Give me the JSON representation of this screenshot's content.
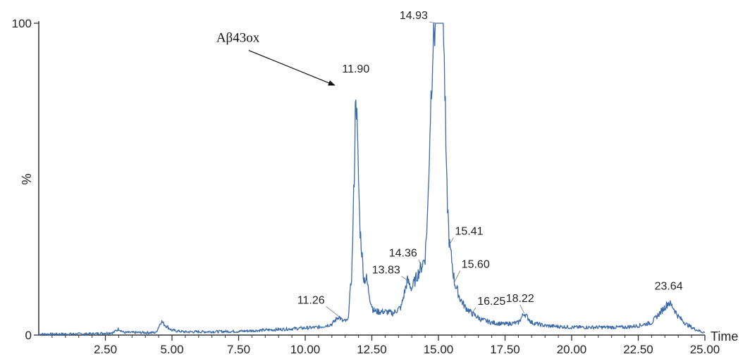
{
  "chart_data": {
    "type": "line",
    "title": "",
    "xlabel": "Time",
    "ylabel": "%",
    "xlim": [
      0,
      25
    ],
    "ylim": [
      0,
      100
    ],
    "grid": false,
    "legend": "none",
    "line_color": "#3a6aa8",
    "axis_color": "#333333",
    "x_ticks": [
      2.5,
      5,
      7.5,
      10,
      12.5,
      15,
      17.5,
      20,
      22.5,
      25
    ],
    "x_tick_labels": [
      "2.50",
      "5.00",
      "7.50",
      "10.00",
      "12.50",
      "15.00",
      "17.50",
      "20.00",
      "22.50",
      "25.00"
    ],
    "y_ticks": [
      0,
      100
    ],
    "y_tick_labels": [
      "0",
      "100"
    ],
    "series": [
      {
        "x": [
          0,
          2.0,
          2.8,
          3.0,
          3.2,
          4.4,
          4.6,
          4.7,
          5.0,
          5.5,
          7.5,
          9.0,
          10.5,
          11.0,
          11.26,
          11.4,
          11.6,
          11.75,
          11.85,
          11.9,
          11.95,
          12.05,
          12.2,
          12.3,
          12.45,
          12.55,
          12.7,
          13.0,
          13.3,
          13.6,
          13.83,
          14.0,
          14.2,
          14.36,
          14.5,
          14.6,
          14.7,
          14.8,
          14.88,
          14.93,
          15.0,
          15.1,
          15.18,
          15.25,
          15.3,
          15.41,
          15.5,
          15.6,
          15.8,
          16.0,
          16.25,
          16.6,
          17.0,
          17.5,
          18.0,
          18.22,
          18.5,
          19.0,
          20.0,
          21.0,
          22.0,
          22.5,
          23.0,
          23.3,
          23.5,
          23.64,
          23.8,
          24.0,
          24.3,
          24.6,
          24.9,
          25.0
        ],
        "y": [
          0.3,
          0.4,
          0.8,
          2.0,
          0.8,
          0.8,
          4.5,
          3.5,
          1.5,
          1.0,
          1.2,
          1.8,
          2.5,
          3.5,
          6.0,
          4.5,
          4.5,
          20.0,
          55.0,
          81.0,
          65.0,
          35.0,
          18.0,
          18.0,
          11.0,
          8.0,
          7.5,
          7.5,
          7.0,
          9.0,
          17.5,
          15.0,
          19.0,
          22.0,
          25.0,
          40.0,
          72.0,
          95.0,
          100.0,
          100.0,
          100.0,
          100.0,
          100.0,
          75.0,
          50.0,
          29.0,
          24.0,
          17.0,
          12.0,
          9.0,
          7.0,
          5.0,
          4.0,
          3.5,
          4.0,
          7.0,
          4.0,
          3.0,
          2.5,
          2.5,
          2.5,
          3.0,
          4.0,
          7.0,
          9.0,
          10.5,
          9.0,
          6.0,
          3.5,
          2.0,
          1.0,
          0.8
        ]
      }
    ],
    "peak_labels": [
      {
        "x": 11.26,
        "y": 6.0,
        "text": "11.26"
      },
      {
        "x": 11.9,
        "y": 81.0,
        "text": "11.90"
      },
      {
        "x": 13.83,
        "y": 17.5,
        "text": "13.83"
      },
      {
        "x": 14.36,
        "y": 22.0,
        "text": "14.36"
      },
      {
        "x": 14.93,
        "y": 100.0,
        "text": "14.93"
      },
      {
        "x": 15.41,
        "y": 29.0,
        "text": "15.41"
      },
      {
        "x": 15.6,
        "y": 17.0,
        "text": "15.60"
      },
      {
        "x": 16.25,
        "y": 7.0,
        "text": "16.25"
      },
      {
        "x": 18.22,
        "y": 7.0,
        "text": "18.22"
      },
      {
        "x": 23.64,
        "y": 10.5,
        "text": "23.64"
      }
    ],
    "annotations": [
      {
        "text": "Aβ43ox",
        "points_to_x": 11.9,
        "points_to_y": 81.0
      }
    ]
  }
}
